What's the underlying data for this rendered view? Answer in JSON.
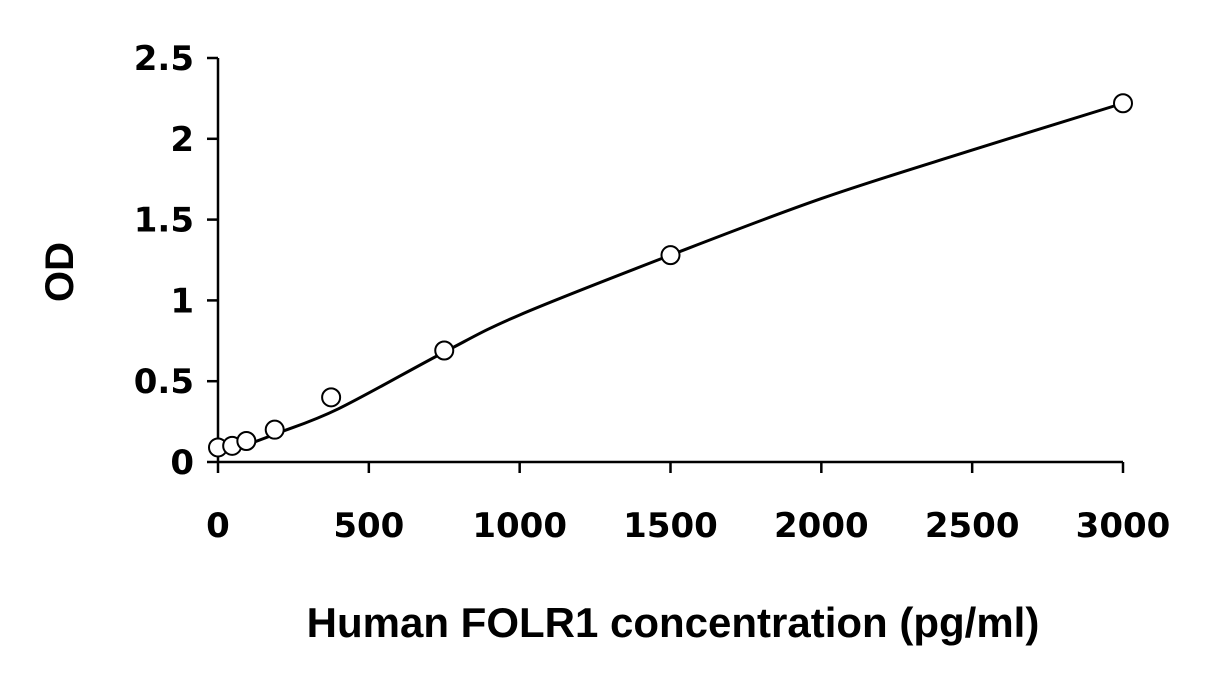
{
  "chart_data": {
    "type": "scatter",
    "title": "",
    "xlabel": "Human FOLR1 concentration (pg/ml)",
    "ylabel": "OD",
    "xlim": [
      0,
      3000
    ],
    "ylim": [
      0,
      2.5
    ],
    "x_ticks": [
      0,
      500,
      1000,
      1500,
      2000,
      2500,
      3000
    ],
    "x_tick_labels": [
      "0",
      "500",
      "1000",
      "1500",
      "2000",
      "2500",
      "3000"
    ],
    "y_ticks": [
      0,
      0.5,
      1,
      1.5,
      2,
      2.5
    ],
    "y_tick_labels": [
      "0",
      "0.5",
      "1",
      "1.5",
      "2",
      "2.5"
    ],
    "grid": false,
    "legend": "none",
    "series": [
      {
        "x": [
          0,
          47,
          94,
          188,
          375,
          750,
          1500,
          3000
        ],
        "y": [
          0.09,
          0.1,
          0.13,
          0.2,
          0.4,
          0.69,
          1.28,
          2.22
        ]
      }
    ],
    "fit_curve": {
      "x": [
        0,
        100,
        200,
        400,
        750,
        1000,
        1500,
        2000,
        2500,
        3000
      ],
      "y": [
        0.05,
        0.11,
        0.18,
        0.33,
        0.68,
        0.91,
        1.28,
        1.63,
        1.93,
        2.22
      ]
    },
    "colors": {
      "marks": "#000000",
      "background": "#ffffff"
    }
  }
}
